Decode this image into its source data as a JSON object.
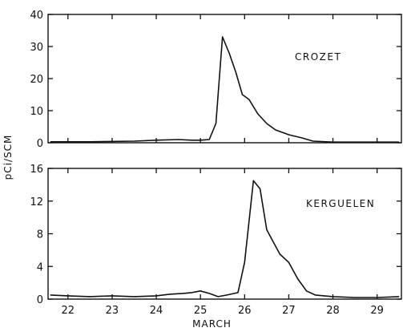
{
  "chart_data": {
    "type": "line",
    "xlabel": "MARCH",
    "ylabel": "pCi/SCM",
    "x_ticks": [
      22,
      23,
      24,
      25,
      26,
      27,
      28,
      29
    ],
    "xlim": [
      21.55,
      29.55
    ],
    "panels": [
      {
        "annotation": "CROZET",
        "ylim": [
          0,
          40
        ],
        "y_ticks": [
          0,
          10,
          20,
          30,
          40
        ],
        "series": [
          {
            "x": [
              21.6,
              22.5,
              23.5,
              24.0,
              24.5,
              24.8,
              25.0,
              25.2,
              25.35,
              25.5,
              25.65,
              25.8,
              25.95,
              26.1,
              26.3,
              26.5,
              26.7,
              27.0,
              27.3,
              27.55,
              28.0,
              28.5,
              29.0,
              29.5
            ],
            "y": [
              0.3,
              0.3,
              0.5,
              0.8,
              1.0,
              0.8,
              0.8,
              1.0,
              6.0,
              33.0,
              28.0,
              22.0,
              15.0,
              13.5,
              9.0,
              6.0,
              4.0,
              2.5,
              1.5,
              0.5,
              0.2,
              0.2,
              0.2,
              0.2
            ]
          }
        ]
      },
      {
        "annotation": "KERGUELEN",
        "ylim": [
          0,
          16
        ],
        "y_ticks": [
          0,
          4,
          8,
          12,
          16
        ],
        "series": [
          {
            "x": [
              21.6,
              22.0,
              22.5,
              23.0,
              23.5,
              24.0,
              24.3,
              24.6,
              24.8,
              25.0,
              25.2,
              25.4,
              25.6,
              25.85,
              26.0,
              26.2,
              26.35,
              26.5,
              26.65,
              26.8,
              27.0,
              27.2,
              27.4,
              27.6,
              28.0,
              28.5,
              29.0,
              29.5
            ],
            "y": [
              0.5,
              0.4,
              0.3,
              0.4,
              0.3,
              0.4,
              0.6,
              0.7,
              0.8,
              1.0,
              0.7,
              0.3,
              0.5,
              0.8,
              4.5,
              14.5,
              13.5,
              8.5,
              7.0,
              5.5,
              4.5,
              2.5,
              1.0,
              0.5,
              0.3,
              0.2,
              0.2,
              0.3
            ]
          }
        ]
      }
    ]
  }
}
